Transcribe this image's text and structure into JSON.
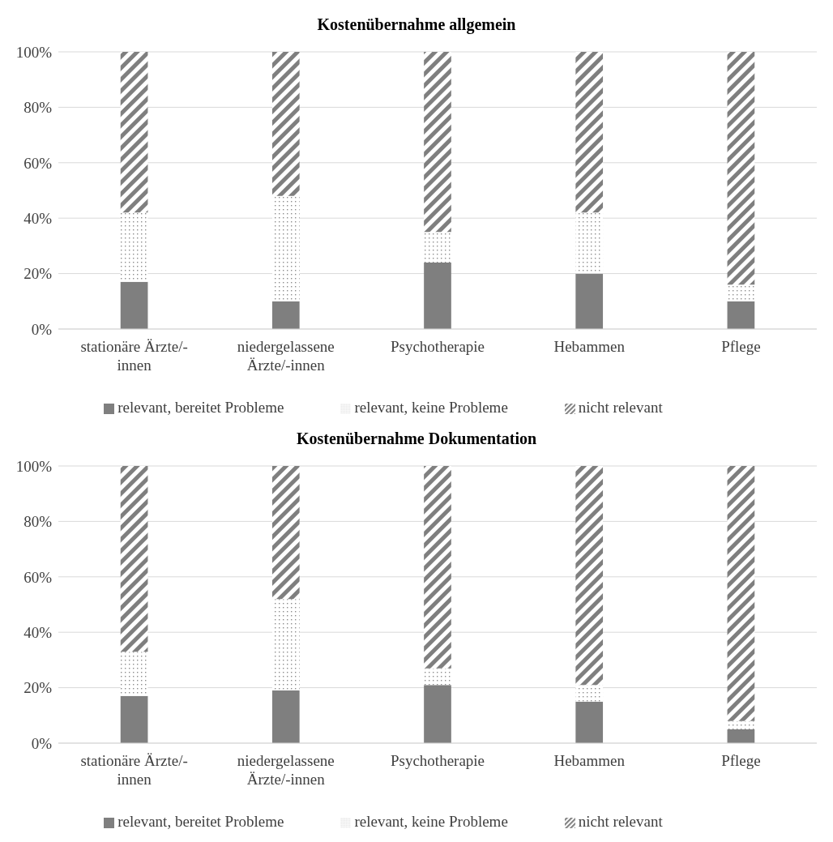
{
  "chart_data": [
    {
      "type": "bar",
      "title": "Kostenübernahme allgemein",
      "stacked": true,
      "categories": [
        "stationäre Ärzte/-innen",
        "niedergelassene Ärzte/-innen",
        "Psychotherapie",
        "Hebammen",
        "Pflege"
      ],
      "series": [
        {
          "name": "relevant, bereitet Probleme",
          "color": "#7f7f7f",
          "values": [
            17,
            10,
            24,
            20,
            10
          ]
        },
        {
          "name": "relevant, keine Probleme",
          "color": "#8c8c8c",
          "values": [
            25,
            38,
            11,
            22,
            6
          ]
        },
        {
          "name": "nicht relevant",
          "color": "#7f7f7f",
          "values": [
            58,
            52,
            65,
            58,
            84
          ]
        }
      ],
      "ylim": [
        0,
        100
      ],
      "yticks": [
        {
          "value": 0,
          "label": "0%"
        },
        {
          "value": 20,
          "label": "20%"
        },
        {
          "value": 40,
          "label": "40%"
        },
        {
          "value": 60,
          "label": "60%"
        },
        {
          "value": 80,
          "label": "80%"
        },
        {
          "value": 100,
          "label": "100%"
        }
      ],
      "grid": "y",
      "legend": "bottom"
    },
    {
      "type": "bar",
      "title": "Kostenübernahme Dokumentation",
      "stacked": true,
      "categories": [
        "stationäre Ärzte/-innen",
        "niedergelassene Ärzte/-innen",
        "Psychotherapie",
        "Hebammen",
        "Pflege"
      ],
      "series": [
        {
          "name": "relevant, bereitet Probleme",
          "color": "#7f7f7f",
          "values": [
            17,
            19,
            21,
            15,
            5
          ]
        },
        {
          "name": "relevant, keine Probleme",
          "color": "#8c8c8c",
          "values": [
            16,
            33,
            6,
            6,
            3
          ]
        },
        {
          "name": "nicht relevant",
          "color": "#7f7f7f",
          "values": [
            67,
            48,
            73,
            79,
            92
          ]
        }
      ],
      "ylim": [
        0,
        100
      ],
      "yticks": [
        {
          "value": 0,
          "label": "0%"
        },
        {
          "value": 20,
          "label": "20%"
        },
        {
          "value": 40,
          "label": "40%"
        },
        {
          "value": 60,
          "label": "60%"
        },
        {
          "value": 80,
          "label": "80%"
        },
        {
          "value": 100,
          "label": "100%"
        }
      ],
      "grid": "y",
      "legend": "bottom"
    }
  ]
}
